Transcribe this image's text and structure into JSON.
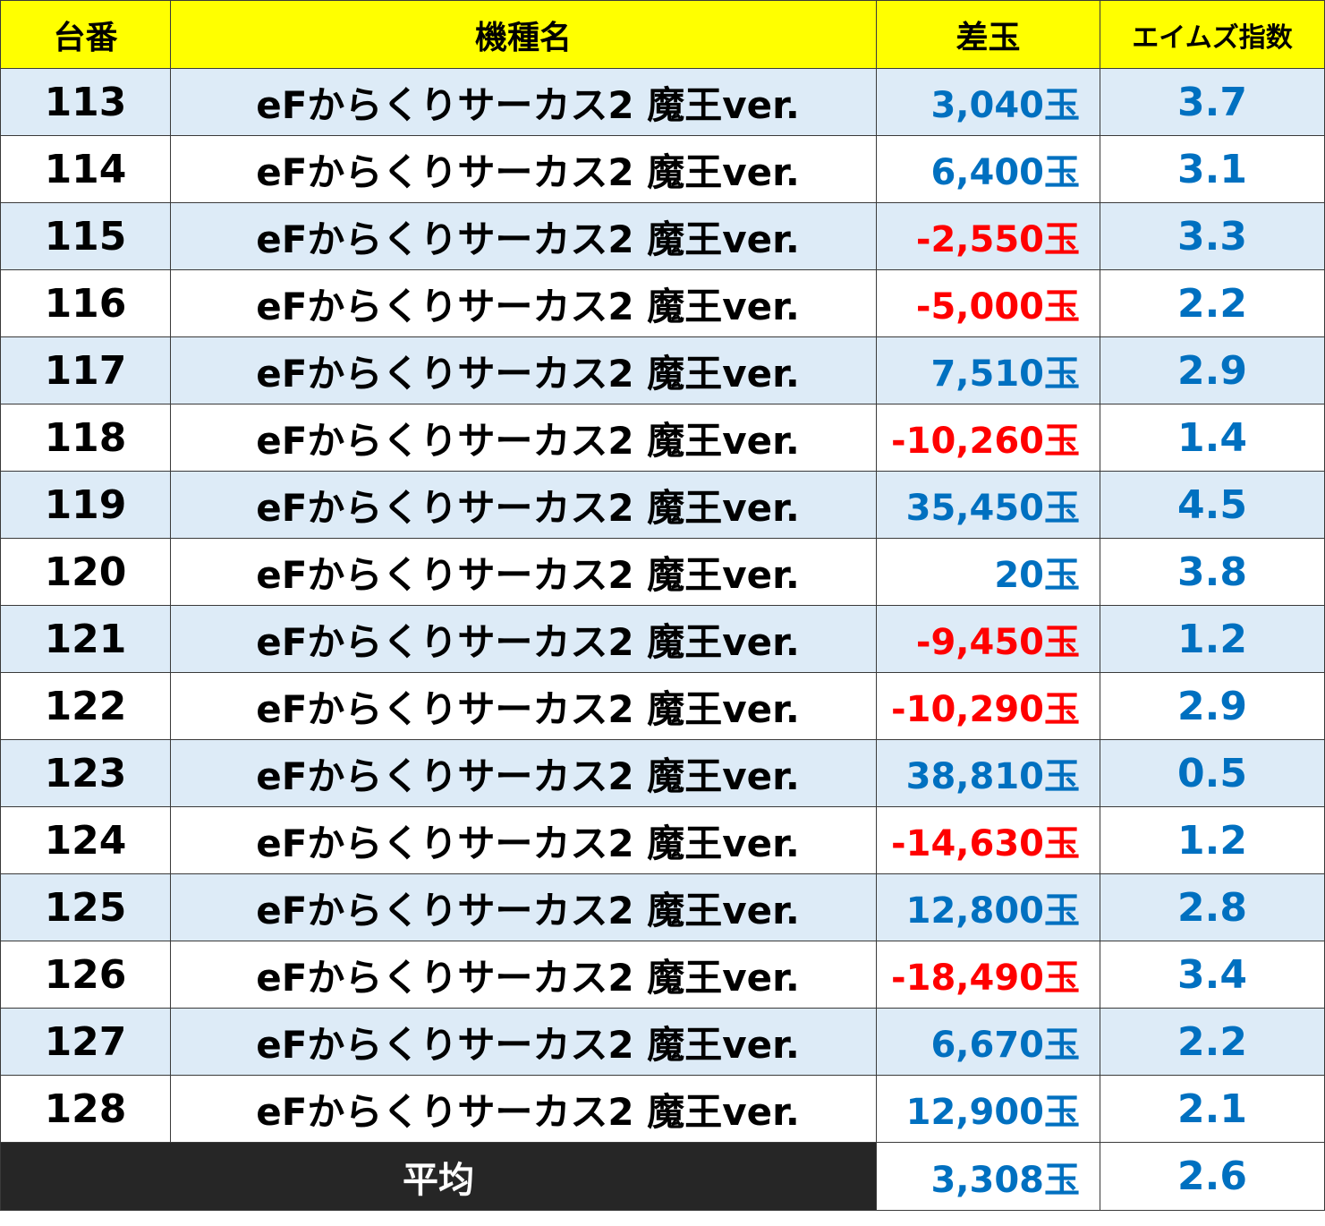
{
  "colors": {
    "header_bg": "#ffff00",
    "row_alt_bg": "#ddebf7",
    "positive": "#0070c0",
    "negative": "#ff0000",
    "index_value": "#0070c0",
    "footer_label_bg": "#262626"
  },
  "table": {
    "headers": {
      "number": "台番",
      "model": "機種名",
      "difference": "差玉",
      "index": "エイムズ指数"
    },
    "rows": [
      {
        "number": "113",
        "model": "eFからくりサーカス2 魔王ver.",
        "difference": "3,040玉",
        "sign": "pos",
        "index": "3.7"
      },
      {
        "number": "114",
        "model": "eFからくりサーカス2 魔王ver.",
        "difference": "6,400玉",
        "sign": "pos",
        "index": "3.1"
      },
      {
        "number": "115",
        "model": "eFからくりサーカス2 魔王ver.",
        "difference": "-2,550玉",
        "sign": "neg",
        "index": "3.3"
      },
      {
        "number": "116",
        "model": "eFからくりサーカス2 魔王ver.",
        "difference": "-5,000玉",
        "sign": "neg",
        "index": "2.2"
      },
      {
        "number": "117",
        "model": "eFからくりサーカス2 魔王ver.",
        "difference": "7,510玉",
        "sign": "pos",
        "index": "2.9"
      },
      {
        "number": "118",
        "model": "eFからくりサーカス2 魔王ver.",
        "difference": "-10,260玉",
        "sign": "neg",
        "index": "1.4"
      },
      {
        "number": "119",
        "model": "eFからくりサーカス2 魔王ver.",
        "difference": "35,450玉",
        "sign": "pos",
        "index": "4.5"
      },
      {
        "number": "120",
        "model": "eFからくりサーカス2 魔王ver.",
        "difference": "20玉",
        "sign": "pos",
        "index": "3.8"
      },
      {
        "number": "121",
        "model": "eFからくりサーカス2 魔王ver.",
        "difference": "-9,450玉",
        "sign": "neg",
        "index": "1.2"
      },
      {
        "number": "122",
        "model": "eFからくりサーカス2 魔王ver.",
        "difference": "-10,290玉",
        "sign": "neg",
        "index": "2.9"
      },
      {
        "number": "123",
        "model": "eFからくりサーカス2 魔王ver.",
        "difference": "38,810玉",
        "sign": "pos",
        "index": "0.5"
      },
      {
        "number": "124",
        "model": "eFからくりサーカス2 魔王ver.",
        "difference": "-14,630玉",
        "sign": "neg",
        "index": "1.2"
      },
      {
        "number": "125",
        "model": "eFからくりサーカス2 魔王ver.",
        "difference": "12,800玉",
        "sign": "pos",
        "index": "2.8"
      },
      {
        "number": "126",
        "model": "eFからくりサーカス2 魔王ver.",
        "difference": "-18,490玉",
        "sign": "neg",
        "index": "3.4"
      },
      {
        "number": "127",
        "model": "eFからくりサーカス2 魔王ver.",
        "difference": "6,670玉",
        "sign": "pos",
        "index": "2.2"
      },
      {
        "number": "128",
        "model": "eFからくりサーカス2 魔王ver.",
        "difference": "12,900玉",
        "sign": "pos",
        "index": "2.1"
      }
    ],
    "footer": {
      "label": "平均",
      "difference": "3,308玉",
      "index": "2.6"
    }
  }
}
